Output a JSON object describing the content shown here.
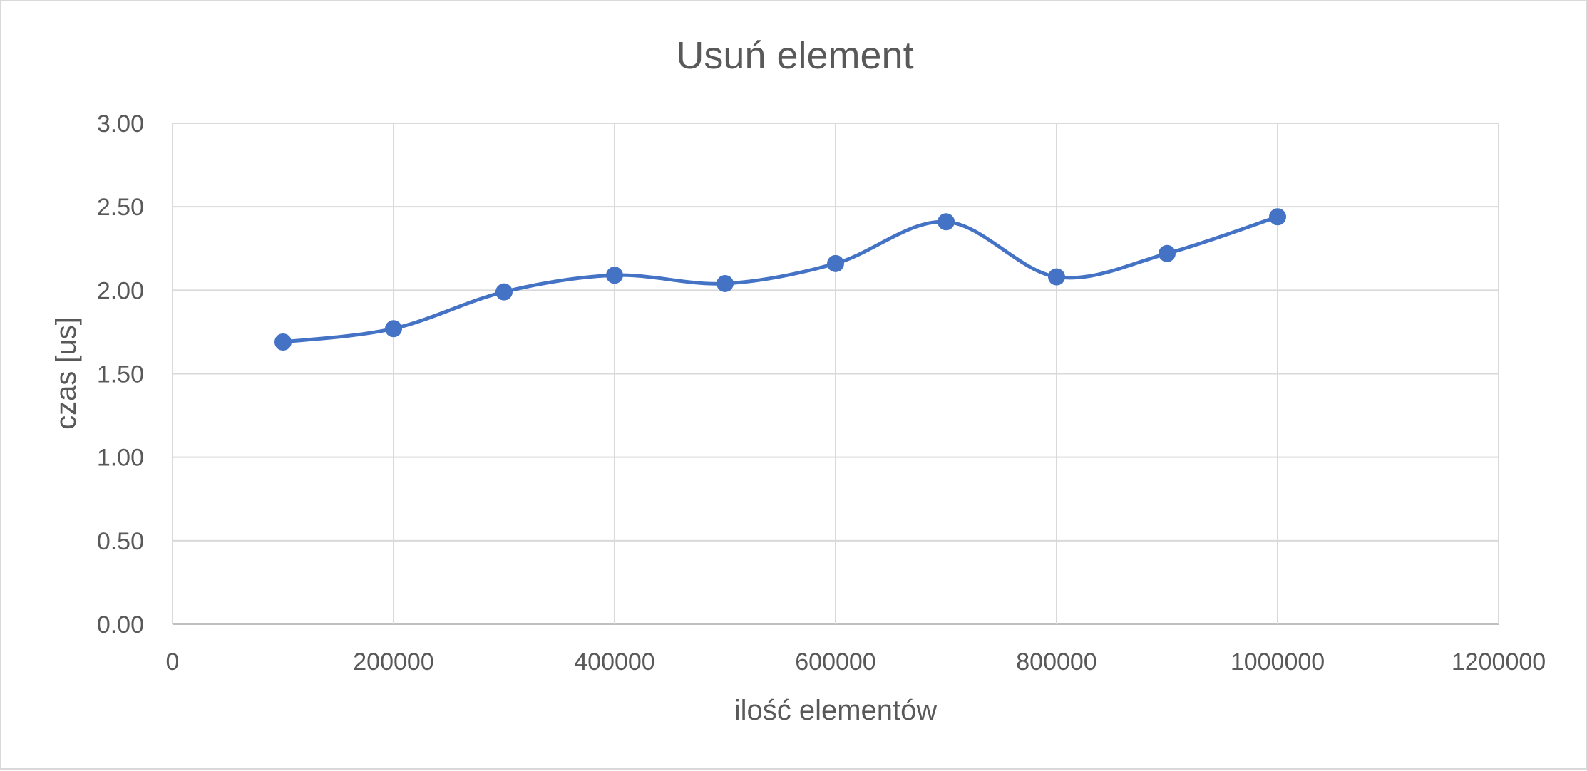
{
  "chart_data": {
    "type": "line",
    "smooth": true,
    "markers": true,
    "title": "Usuń element",
    "xlabel": "ilość elementów",
    "ylabel": "czas [us]",
    "xlim": [
      0,
      1200000
    ],
    "ylim": [
      0,
      3
    ],
    "xticks": [
      "0",
      "200000",
      "400000",
      "600000",
      "800000",
      "1000000",
      "1200000"
    ],
    "yticks": [
      "0.00",
      "0.50",
      "1.00",
      "1.50",
      "2.00",
      "2.50",
      "3.00"
    ],
    "grid": true,
    "legend": "none",
    "series": [
      {
        "color": "#4472C4",
        "x": [
          100000,
          200000,
          300000,
          400000,
          500000,
          600000,
          700000,
          800000,
          900000,
          1000000
        ],
        "y": [
          1.69,
          1.77,
          1.99,
          2.09,
          2.04,
          2.16,
          2.41,
          2.08,
          2.22,
          2.44
        ]
      }
    ]
  }
}
